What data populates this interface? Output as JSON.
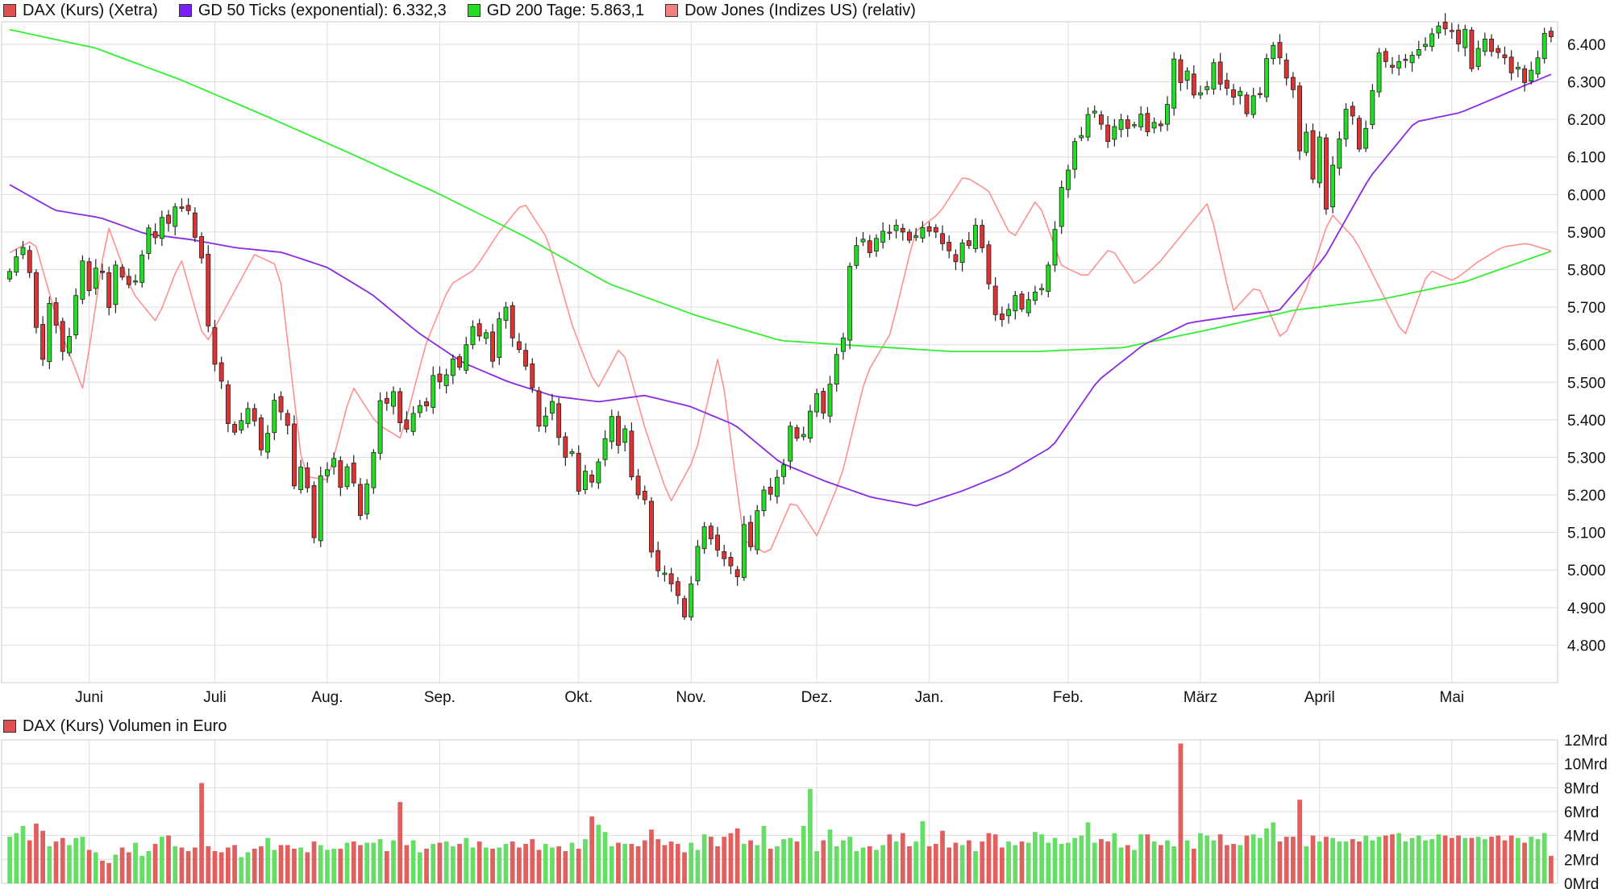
{
  "legend": {
    "dax": {
      "label": "DAX (Kurs) (Xetra)",
      "color": "#e05050"
    },
    "gd50": {
      "label": "GD 50 Ticks (exponential): 6.332,3",
      "color": "#7a1fff"
    },
    "gd200": {
      "label": "GD 200 Tage: 5.863,1",
      "color": "#22dd22"
    },
    "dow": {
      "label": "Dow Jones (Indizes US) (relativ)",
      "color": "#f08080"
    }
  },
  "volume_legend": {
    "label": "DAX (Kurs) Volumen in Euro",
    "color": "#e05050"
  },
  "colors": {
    "up": "#22dd22",
    "down": "#dd3333",
    "gd50": "#8a2be2",
    "gd200": "#33ee33",
    "dow": "#ff9090",
    "vol_up": "#66dd66",
    "vol_down": "#e06060",
    "grid": "#dddddd"
  },
  "chart_data": [
    {
      "type": "candlestick",
      "title": "DAX (Kurs) (Xetra)",
      "x_tick_labels": [
        "Juni",
        "Juli",
        "Aug.",
        "Sep.",
        "Okt.",
        "Nov.",
        "Dez.",
        "Jan.",
        "Feb.",
        "März",
        "April",
        "Mai"
      ],
      "y_tick_labels": [
        "4.800",
        "4.900",
        "5.000",
        "5.100",
        "5.200",
        "5.300",
        "5.400",
        "5.500",
        "5.600",
        "5.700",
        "5.800",
        "5.900",
        "6.000",
        "6.100",
        "6.200",
        "6.300",
        "6.400"
      ],
      "ylim": [
        4700,
        6460
      ],
      "grid": true,
      "month_of_each_label_starts_at_session": [
        12,
        31,
        48,
        65,
        86,
        103,
        122,
        139,
        160,
        180,
        198,
        218
      ],
      "dax_close": [
        5795,
        5834,
        5859,
        5792,
        5646,
        5561,
        5710,
        5652,
        5582,
        5622,
        5731,
        5823,
        5744,
        5804,
        5792,
        5699,
        5812,
        5780,
        5760,
        5770,
        5839,
        5911,
        5885,
        5939,
        5923,
        5967,
        5963,
        5957,
        5886,
        5831,
        5650,
        5548,
        5503,
        5390,
        5367,
        5398,
        5430,
        5397,
        5320,
        5364,
        5452,
        5421,
        5385,
        5224,
        5274,
        5219,
        5086,
        5251,
        5267,
        5297,
        5220,
        5275,
        5232,
        5145,
        5229,
        5313,
        5451,
        5444,
        5475,
        5392,
        5375,
        5417,
        5438,
        5437,
        5518,
        5501,
        5520,
        5562,
        5540,
        5600,
        5648,
        5623,
        5632,
        5556,
        5669,
        5700,
        5618,
        5587,
        5543,
        5485,
        5383,
        5410,
        5449,
        5353,
        5300,
        5315,
        5210,
        5263,
        5234,
        5288,
        5350,
        5409,
        5332,
        5376,
        5248,
        5200,
        5187,
        5048,
        4998,
        4992,
        4963,
        4932,
        4875,
        4963,
        5063,
        5115,
        5083,
        5053,
        5030,
        5011,
        4982,
        5121,
        5062,
        5158,
        5213,
        5202,
        5247,
        5280,
        5383,
        5351,
        5361,
        5423,
        5470,
        5418,
        5495,
        5574,
        5618,
        5809,
        5864,
        5881,
        5845,
        5883,
        5902,
        5898,
        5918,
        5900,
        5878,
        5890,
        5912,
        5902,
        5900,
        5869,
        5850,
        5821,
        5871,
        5864,
        5918,
        5858,
        5762,
        5680,
        5667,
        5694,
        5731,
        5695,
        5720,
        5740,
        5750,
        5812,
        5907,
        6019,
        6065,
        6141,
        6157,
        6213,
        6222,
        6187,
        6141,
        6181,
        6199,
        6176,
        6186,
        6214,
        6167,
        6192,
        6183,
        6240,
        6361,
        6298,
        6329,
        6265,
        6271,
        6287,
        6351,
        6294,
        6283,
        6259,
        6275,
        6215,
        6263,
        6268,
        6362,
        6397,
        6364,
        6310,
        6279,
        6116,
        6166,
        6041,
        6153,
        5961,
        6078,
        6148,
        6227,
        6209,
        6121,
        6176,
        6277,
        6377,
        6354,
        6339,
        6354,
        6359,
        6371,
        6386,
        6400,
        6428,
        6449,
        6441,
        6434,
        6401,
        6440,
        6335,
        6389,
        6414,
        6381,
        6378,
        6364,
        6324,
        6339,
        6298,
        6331,
        6364,
        6429,
        6420
      ],
      "gd50_series": [
        6026,
        5958,
        5938,
        5895,
        5880,
        5858,
        5846,
        5806,
        5733,
        5633,
        5552,
        5501,
        5463,
        5448,
        5465,
        5436,
        5386,
        5286,
        5236,
        5194,
        5171,
        5210,
        5259,
        5329,
        5504,
        5599,
        5658,
        5676,
        5691,
        5832,
        6046,
        6193,
        6218,
        6269,
        6320
      ],
      "gd200_series": [
        6439,
        6390,
        6305,
        6208,
        6107,
        6003,
        5890,
        5762,
        5679,
        5611,
        5596,
        5582,
        5582,
        5592,
        5640,
        5692,
        5720,
        5768,
        5849
      ],
      "dow_relative": [
        5845,
        5880,
        5650,
        5480,
        5920,
        5740,
        5660,
        5830,
        5600,
        5720,
        5840,
        5810,
        5250,
        5240,
        5490,
        5390,
        5350,
        5600,
        5760,
        5800,
        5900,
        5980,
        5880,
        5650,
        5480,
        5600,
        5370,
        5180,
        5300,
        5580,
        5080,
        5040,
        5190,
        5090,
        5250,
        5520,
        5630,
        5900,
        5950,
        6050,
        6010,
        5880,
        5990,
        5810,
        5780,
        5860,
        5760,
        5820,
        5900,
        5980,
        5690,
        5760,
        5610,
        5750,
        5950,
        5880,
        5750,
        5620,
        5800,
        5770,
        5820,
        5860,
        5870,
        5850
      ],
      "volume_panel": {
        "title": "DAX (Kurs) Volumen in Euro",
        "y_tick_labels": [
          "0Mrd",
          "2Mrd",
          "4Mrd",
          "6Mrd",
          "8Mrd",
          "10Mrd",
          "12Mrd"
        ],
        "ylim": [
          0,
          12
        ],
        "unit": "Mrd",
        "volumes": [
          3.9,
          4.2,
          4.8,
          3.6,
          5.0,
          4.4,
          3.1,
          3.5,
          3.8,
          3.2,
          3.8,
          3.9,
          2.8,
          2.6,
          1.9,
          1.7,
          2.4,
          3.0,
          2.6,
          3.4,
          2.3,
          2.7,
          3.3,
          3.9,
          4.0,
          3.1,
          3.0,
          2.7,
          3.0,
          8.4,
          3.1,
          2.7,
          2.6,
          3.0,
          3.2,
          2.2,
          2.6,
          2.9,
          3.1,
          3.8,
          2.8,
          3.2,
          3.2,
          2.9,
          3.0,
          2.6,
          3.5,
          3.2,
          2.8,
          2.9,
          2.9,
          3.4,
          3.5,
          3.2,
          3.4,
          3.4,
          3.7,
          2.7,
          3.6,
          6.8,
          3.2,
          3.6,
          2.6,
          2.9,
          3.3,
          3.4,
          3.5,
          3.1,
          3.3,
          3.8,
          3.0,
          3.5,
          3.0,
          2.9,
          3.0,
          3.3,
          3.5,
          3.0,
          3.3,
          3.7,
          2.8,
          3.3,
          3.0,
          3.1,
          2.7,
          3.4,
          2.9,
          3.7,
          5.6,
          4.9,
          4.3,
          3.1,
          3.4,
          3.3,
          3.3,
          3.1,
          3.6,
          4.5,
          3.7,
          3.2,
          3.5,
          3.3,
          2.6,
          3.4,
          2.8,
          4.1,
          3.9,
          3.1,
          3.9,
          4.2,
          4.6,
          3.3,
          3.6,
          3.2,
          4.8,
          2.9,
          3.1,
          3.7,
          3.8,
          3.5,
          4.8,
          7.9,
          2.7,
          3.6,
          4.5,
          3.1,
          3.6,
          3.9,
          2.7,
          3.0,
          3.1,
          2.8,
          3.2,
          4.1,
          3.5,
          4.2,
          3.1,
          3.5,
          5.2,
          3.1,
          3.3,
          4.4,
          3.0,
          3.4,
          3.2,
          3.6,
          2.7,
          3.5,
          4.2,
          4.1,
          3.0,
          3.5,
          3.2,
          3.5,
          3.4,
          4.3,
          4.1,
          3.4,
          3.8,
          3.3,
          3.4,
          3.8,
          4.0,
          5.1,
          3.4,
          3.7,
          3.5,
          4.2,
          3.0,
          3.2,
          2.8,
          4.1,
          4.1,
          3.5,
          3.2,
          3.6,
          3.1,
          11.7,
          3.6,
          2.9,
          4.2,
          4.0,
          3.6,
          4.1,
          3.2,
          3.3,
          3.2,
          4.0,
          4.1,
          3.8,
          4.6,
          5.1,
          3.5,
          3.9,
          3.9,
          7.0,
          3.1,
          4.0,
          3.5,
          3.9,
          3.8,
          3.5,
          3.5,
          3.7,
          3.5,
          4.0,
          3.6,
          3.9,
          4.0,
          4.1,
          4.2,
          3.5,
          3.8,
          4.0,
          3.6,
          3.7,
          4.1,
          4.0,
          3.8,
          4.0,
          3.8,
          3.8,
          3.9,
          3.7,
          3.9,
          4.0,
          3.6,
          4.0,
          3.8,
          3.4,
          3.9,
          3.7,
          4.2,
          2.3
        ]
      }
    }
  ]
}
